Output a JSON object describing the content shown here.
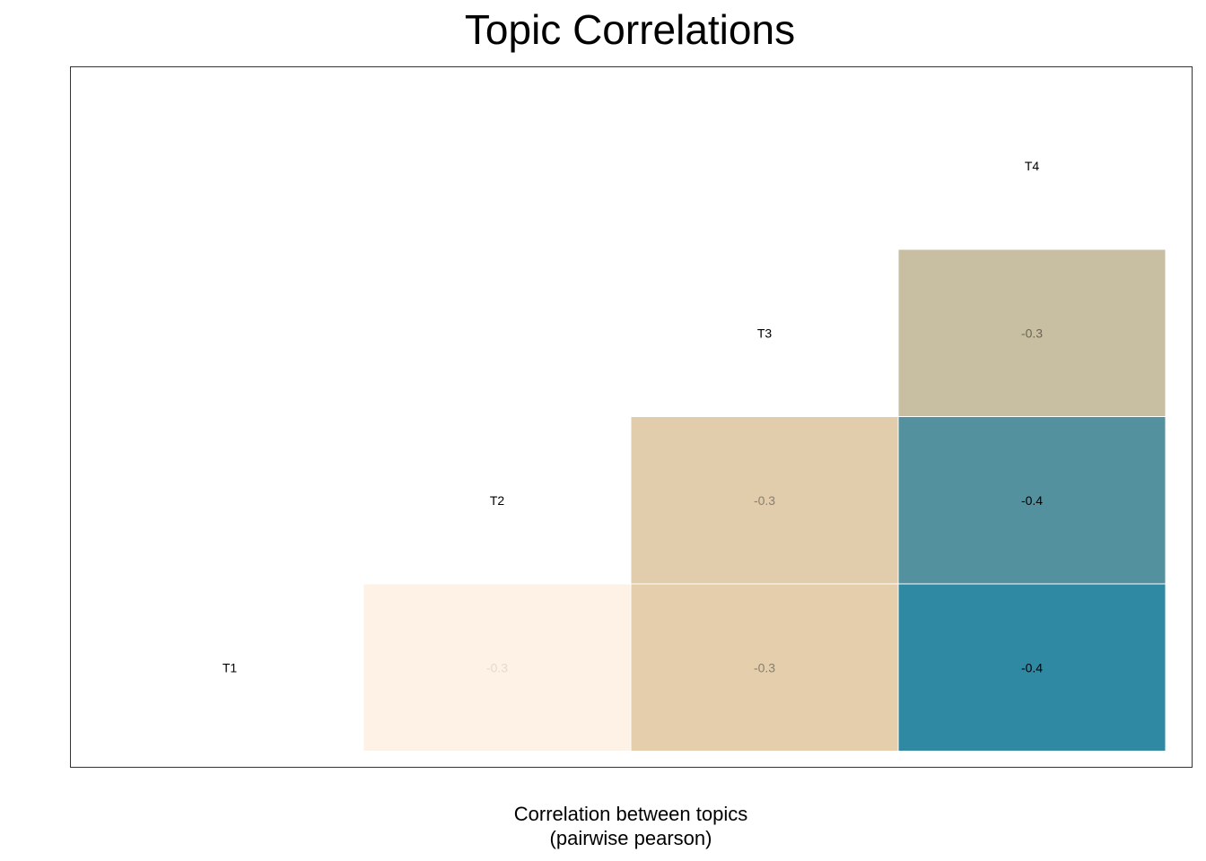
{
  "chart_data": {
    "type": "heatmap",
    "title": "Topic Correlations",
    "xlabel": "Correlation between topics\n(pairwise pearson)",
    "ylabel": "",
    "topics": [
      "T1",
      "T2",
      "T3",
      "T4"
    ],
    "cells": [
      {
        "row": "T1",
        "col": "T2",
        "value": -0.3,
        "label": "-0.3",
        "color": "#fdf2e5",
        "text_color": "#e4dacd"
      },
      {
        "row": "T1",
        "col": "T3",
        "value": -0.3,
        "label": "-0.3",
        "color": "#e4ceac",
        "text_color": "#8a7e6c"
      },
      {
        "row": "T1",
        "col": "T4",
        "value": -0.4,
        "label": "-0.4",
        "color": "#2f89a3",
        "text_color": "#000000"
      },
      {
        "row": "T2",
        "col": "T3",
        "value": -0.3,
        "label": "-0.3",
        "color": "#e1cdab",
        "text_color": "#8a7e6c"
      },
      {
        "row": "T2",
        "col": "T4",
        "value": -0.4,
        "label": "-0.4",
        "color": "#54919e",
        "text_color": "#000000"
      },
      {
        "row": "T3",
        "col": "T4",
        "value": -0.3,
        "label": "-0.3",
        "color": "#c8bea1",
        "text_color": "#6b6656"
      }
    ],
    "grid": false,
    "legend": "none"
  }
}
